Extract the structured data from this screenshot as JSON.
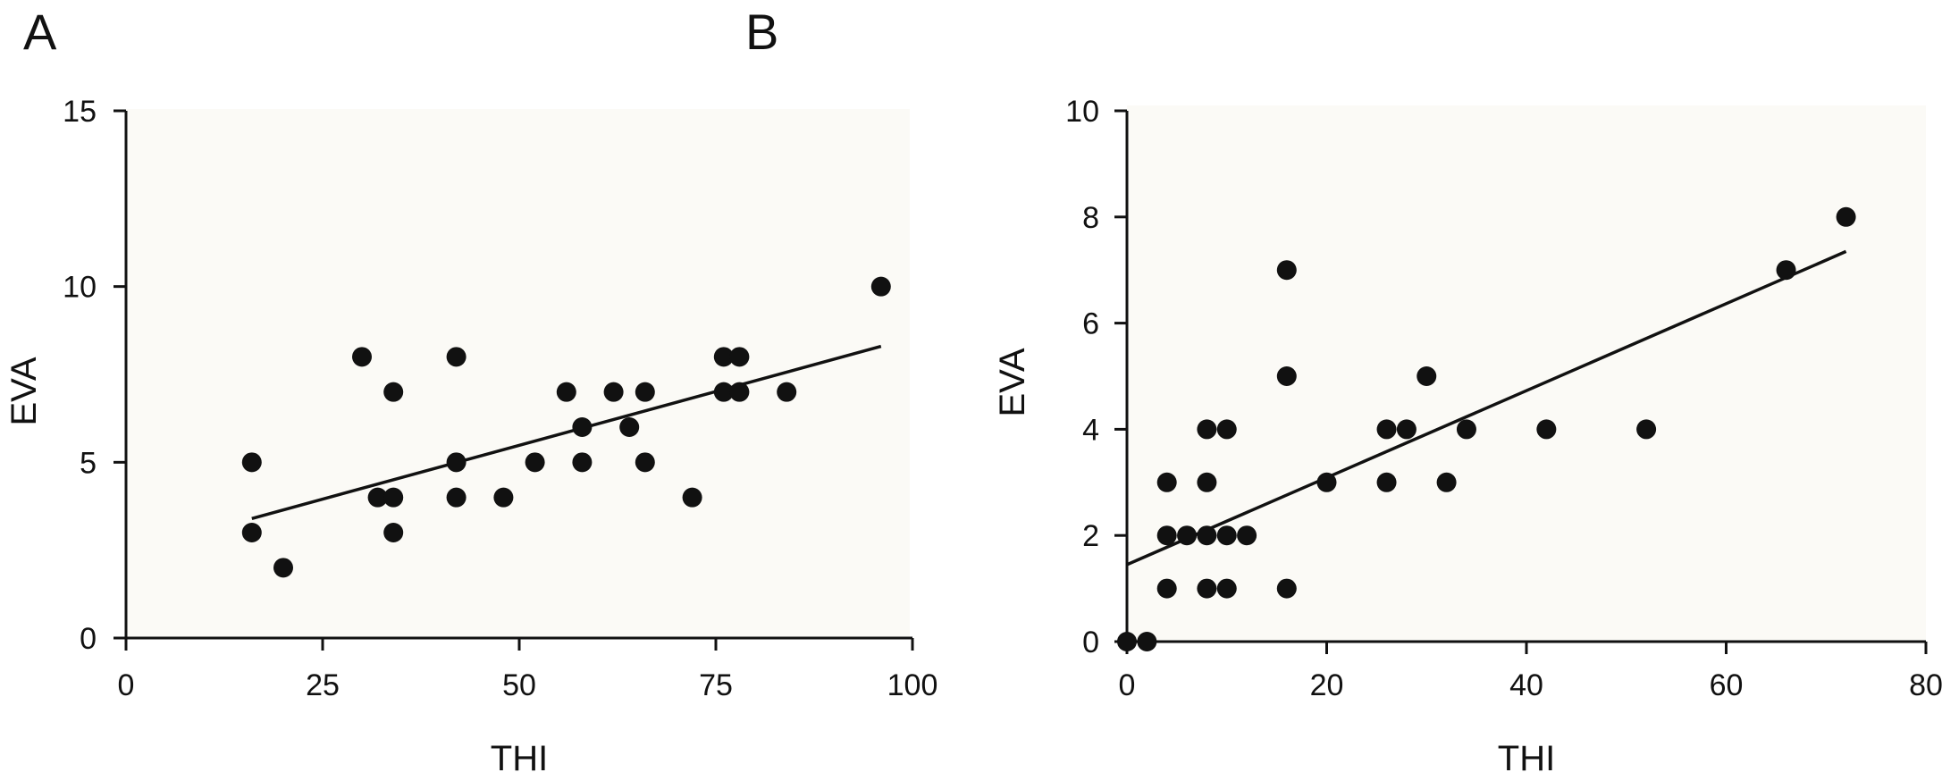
{
  "panels": [
    {
      "letter": "A"
    },
    {
      "letter": "B"
    }
  ],
  "chart_data": [
    {
      "type": "scatter",
      "title": "",
      "xlabel": "THI",
      "ylabel": "EVA",
      "xlim": [
        0,
        100
      ],
      "ylim": [
        0,
        15
      ],
      "xticks": [
        0,
        25,
        50,
        75,
        100
      ],
      "yticks": [
        0,
        5,
        10,
        15
      ],
      "grid": false,
      "background": "#fbfaf6",
      "marker_color": "#111111",
      "points": [
        [
          16,
          5
        ],
        [
          16,
          3
        ],
        [
          20,
          2
        ],
        [
          30,
          8
        ],
        [
          32,
          4
        ],
        [
          34,
          7
        ],
        [
          34,
          4
        ],
        [
          34,
          3
        ],
        [
          42,
          8
        ],
        [
          42,
          5
        ],
        [
          42,
          4
        ],
        [
          48,
          4
        ],
        [
          52,
          5
        ],
        [
          56,
          7
        ],
        [
          58,
          6
        ],
        [
          58,
          5
        ],
        [
          62,
          7
        ],
        [
          64,
          6
        ],
        [
          66,
          7
        ],
        [
          66,
          5
        ],
        [
          72,
          4
        ],
        [
          76,
          8
        ],
        [
          78,
          8
        ],
        [
          76,
          7
        ],
        [
          78,
          7
        ],
        [
          84,
          7
        ],
        [
          96,
          10
        ]
      ],
      "fit_line": {
        "x": [
          16,
          96
        ],
        "y": [
          3.4,
          8.3
        ]
      }
    },
    {
      "type": "scatter",
      "title": "",
      "xlabel": "THI",
      "ylabel": "EVA",
      "xlim": [
        0,
        80
      ],
      "ylim": [
        0,
        10
      ],
      "xticks": [
        0,
        20,
        40,
        60,
        80
      ],
      "yticks": [
        0,
        2,
        4,
        6,
        8,
        10
      ],
      "grid": false,
      "background": "#fbfaf6",
      "marker_color": "#111111",
      "points": [
        [
          0,
          0
        ],
        [
          2,
          0
        ],
        [
          4,
          3
        ],
        [
          4,
          2
        ],
        [
          4,
          1
        ],
        [
          6,
          2
        ],
        [
          8,
          4
        ],
        [
          8,
          3
        ],
        [
          8,
          2
        ],
        [
          8,
          1
        ],
        [
          10,
          4
        ],
        [
          10,
          2
        ],
        [
          10,
          1
        ],
        [
          12,
          2
        ],
        [
          16,
          7
        ],
        [
          16,
          5
        ],
        [
          16,
          1
        ],
        [
          20,
          3
        ],
        [
          26,
          4
        ],
        [
          26,
          3
        ],
        [
          28,
          4
        ],
        [
          30,
          5
        ],
        [
          32,
          3
        ],
        [
          34,
          4
        ],
        [
          42,
          4
        ],
        [
          52,
          4
        ],
        [
          66,
          7
        ],
        [
          72,
          8
        ]
      ],
      "fit_line": {
        "x": [
          0,
          72
        ],
        "y": [
          1.45,
          7.35
        ]
      }
    }
  ]
}
